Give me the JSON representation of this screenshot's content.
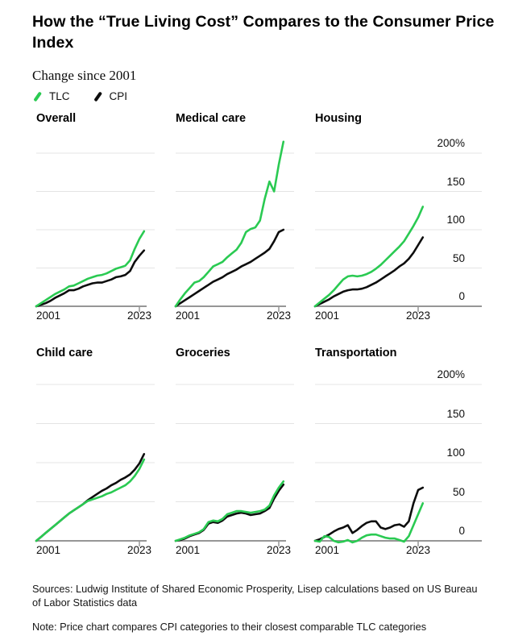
{
  "header": {
    "title": "How the “True Living Cost” Compares to the Consumer Price Index",
    "subtitle": "Change since 2001"
  },
  "legend": [
    {
      "label": "TLC",
      "color": "#2aca52"
    },
    {
      "label": "CPI",
      "color": "#0d0d0d"
    }
  ],
  "chart_data": {
    "type": "line",
    "x": [
      2001,
      2002,
      2003,
      2004,
      2005,
      2006,
      2007,
      2008,
      2009,
      2010,
      2011,
      2012,
      2013,
      2014,
      2015,
      2016,
      2017,
      2018,
      2019,
      2020,
      2021,
      2022,
      2023,
      2024
    ],
    "x_ticks": [
      "2001",
      "2023"
    ],
    "y_ticks": [
      "200%",
      "150",
      "100",
      "50",
      "0"
    ],
    "y_tick_values": [
      200,
      150,
      100,
      50,
      0
    ],
    "ylim": [
      -5,
      220
    ],
    "grid": true,
    "legend_position": "top-left",
    "colors": {
      "tlc": "#2aca52",
      "cpi": "#0d0d0d"
    },
    "panels": [
      {
        "title": "Overall",
        "series": [
          {
            "name": "TLC",
            "values": [
              0,
              4,
              8,
              12,
              16,
              19,
              22,
              26,
              27,
              30,
              33,
              36,
              38,
              40,
              41,
              43,
              46,
              49,
              51,
              53,
              60,
              75,
              88,
              98
            ]
          },
          {
            "name": "CPI",
            "values": [
              0,
              2,
              4,
              7,
              11,
              14,
              17,
              21,
              21,
              23,
              26,
              28,
              30,
              31,
              31,
              33,
              35,
              38,
              39,
              41,
              46,
              58,
              66,
              73
            ]
          }
        ]
      },
      {
        "title": "Medical care",
        "series": [
          {
            "name": "TLC",
            "values": [
              0,
              9,
              17,
              24,
              31,
              33,
              38,
              45,
              52,
              55,
              58,
              64,
              69,
              74,
              83,
              97,
              101,
              103,
              112,
              140,
              163,
              150,
              185,
              215
            ]
          },
          {
            "name": "CPI",
            "values": [
              0,
              4,
              8,
              12,
              16,
              20,
              24,
              28,
              32,
              35,
              38,
              42,
              45,
              48,
              52,
              55,
              58,
              62,
              66,
              70,
              75,
              85,
              97,
              100
            ]
          }
        ]
      },
      {
        "title": "Housing",
        "series": [
          {
            "name": "TLC",
            "values": [
              0,
              5,
              10,
              15,
              21,
              28,
              35,
              39,
              40,
              39,
              40,
              42,
              45,
              49,
              54,
              60,
              66,
              72,
              78,
              85,
              95,
              105,
              116,
              130
            ]
          },
          {
            "name": "CPI",
            "values": [
              0,
              3,
              6,
              9,
              13,
              16,
              19,
              21,
              22,
              22,
              23,
              25,
              28,
              31,
              35,
              39,
              43,
              47,
              52,
              56,
              62,
              70,
              80,
              90
            ]
          }
        ]
      },
      {
        "title": "Child care",
        "series": [
          {
            "name": "TLC",
            "values": [
              0,
              5,
              10,
              15,
              20,
              25,
              30,
              35,
              39,
              43,
              47,
              51,
              53,
              55,
              57,
              60,
              62,
              65,
              68,
              71,
              76,
              83,
              92,
              104
            ]
          },
          {
            "name": "CPI",
            "values": [
              0,
              5,
              10,
              15,
              20,
              25,
              30,
              35,
              39,
              43,
              47,
              52,
              56,
              60,
              64,
              67,
              71,
              74,
              78,
              81,
              85,
              91,
              99,
              111
            ]
          }
        ]
      },
      {
        "title": "Groceries",
        "series": [
          {
            "name": "TLC",
            "values": [
              0,
              2,
              4,
              7,
              9,
              11,
              15,
              24,
              26,
              25,
              28,
              34,
              36,
              38,
              38,
              37,
              36,
              37,
              38,
              40,
              45,
              58,
              68,
              76
            ]
          },
          {
            "name": "CPI",
            "values": [
              0,
              1,
              3,
              6,
              8,
              10,
              14,
              22,
              24,
              23,
              26,
              31,
              33,
              35,
              36,
              35,
              33,
              34,
              35,
              38,
              42,
              54,
              64,
              72
            ]
          }
        ]
      },
      {
        "title": "Transportation",
        "series": [
          {
            "name": "TLC",
            "values": [
              0,
              -1,
              6,
              5,
              0,
              -2,
              -1,
              1,
              -2,
              0,
              4,
              7,
              8,
              8,
              6,
              4,
              3,
              3,
              1,
              -1,
              6,
              20,
              34,
              48
            ]
          },
          {
            "name": "CPI",
            "values": [
              0,
              2,
              5,
              8,
              12,
              15,
              17,
              20,
              10,
              14,
              19,
              23,
              25,
              25,
              17,
              15,
              17,
              20,
              21,
              18,
              25,
              48,
              65,
              68
            ]
          }
        ]
      }
    ]
  },
  "footer": {
    "sources": "Sources: Ludwig Institute of Shared Economic Prosperity, Lisep calculations based on US Bureau of Labor Statistics data",
    "note": "Note: Price chart compares CPI categories to their closest comparable TLC categories"
  }
}
